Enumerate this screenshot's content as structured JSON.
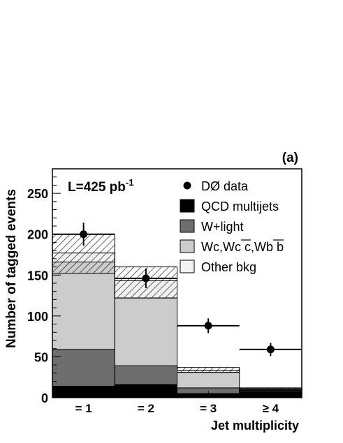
{
  "chart_data": {
    "type": "bar",
    "stacked": true,
    "panel_label": "(a)",
    "luminosity_label": "L=425 pb",
    "luminosity_exponent": "-1",
    "xlabel": "Jet multiplicity",
    "ylabel": "Number of tagged events",
    "categories": [
      "= 1",
      "= 2",
      "= 3",
      "≥ 4"
    ],
    "ylim": [
      0,
      280
    ],
    "yticks": [
      0,
      50,
      100,
      150,
      200,
      250
    ],
    "grid": false,
    "legend_position": "top-right",
    "series": [
      {
        "name": "QCD multijets",
        "color": "#000000",
        "values": [
          14,
          16,
          5,
          7
        ]
      },
      {
        "name": "W+light",
        "color": "#6e6e6e",
        "values": [
          45,
          23,
          7,
          1
        ]
      },
      {
        "name": "Wc,Wc c,Wb b",
        "color": "#cccccc",
        "values": [
          107,
          83,
          19,
          2
        ]
      },
      {
        "name": "Other bkg",
        "color": "#f2f2f2",
        "values": [
          11,
          21,
          2,
          1
        ]
      }
    ],
    "uncertainty_band": {
      "low": [
        152,
        122,
        31,
        9
      ],
      "high": [
        200,
        160,
        37,
        12
      ]
    },
    "data": {
      "name": "DØ data",
      "values": [
        200,
        146,
        88,
        59
      ],
      "errors": [
        14,
        12,
        9,
        8
      ]
    }
  }
}
